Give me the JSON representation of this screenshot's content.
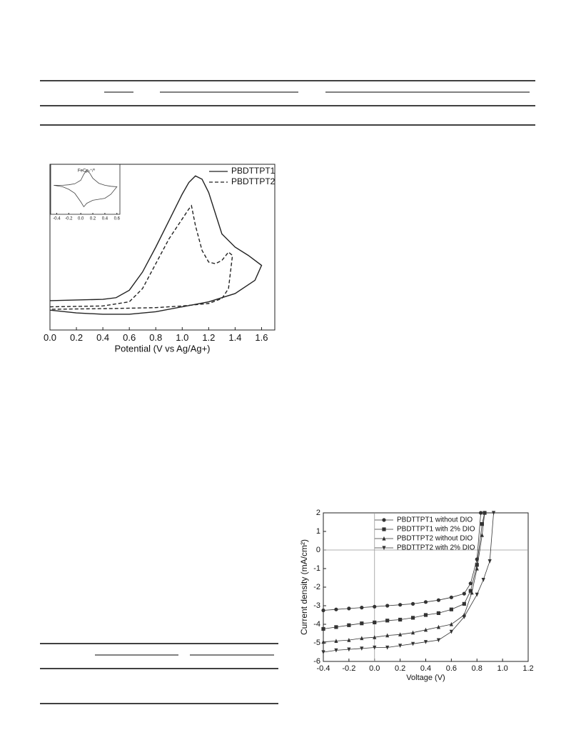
{
  "chart_data": [
    {
      "type": "line",
      "xlabel": "Potential (V vs Ag/Ag+)",
      "xlim": [
        0,
        1.7
      ],
      "ylim": [
        0,
        100
      ],
      "xticks": [
        {
          "value": 0,
          "label": "0.0"
        },
        0.2,
        0.4,
        0.6,
        0.8,
        {
          "value": 1,
          "label": "1.0"
        },
        1.2,
        1.4,
        1.6
      ],
      "legend": "top-right",
      "series": [
        {
          "name": "PBDTTPT1",
          "color": "#222222",
          "style": "solid",
          "x": [
            0,
            0.4,
            0.5,
            0.6,
            0.7,
            0.8,
            0.9,
            1.0,
            1.05,
            1.1,
            1.15,
            1.2,
            1.3,
            1.4,
            1.5,
            1.6,
            1.55,
            1.4,
            1.2,
            1.0,
            0.8,
            0.6,
            0.4,
            0.2,
            0
          ],
          "values": [
            17.7,
            18.5,
            19.5,
            24,
            35,
            50,
            66,
            82,
            89,
            93,
            91,
            83,
            58,
            50,
            45,
            39,
            30,
            22,
            17,
            14,
            11,
            9.5,
            9.5,
            10.3,
            12
          ]
        },
        {
          "name": "PBDTTPT2",
          "color": "#222222",
          "style": "dashed",
          "x": [
            0,
            0.4,
            0.6,
            0.7,
            0.8,
            0.9,
            1.0,
            1.05,
            1.07,
            1.1,
            1.15,
            1.2,
            1.25,
            1.3,
            1.35,
            1.38,
            1.35,
            1.3,
            1.2,
            1.0,
            0.8,
            0.5,
            0
          ],
          "values": [
            14,
            14.5,
            17,
            25,
            40,
            55,
            67,
            73,
            75,
            63,
            48,
            41,
            40,
            42,
            47,
            45,
            25,
            19,
            16,
            14.5,
            13.5,
            13,
            12.5
          ]
        }
      ]
    },
    {
      "type": "line",
      "title": "FeCp₂⁺/⁰",
      "xlim": [
        -0.5,
        0.65
      ],
      "ylim": [
        0,
        100
      ],
      "xticks": [
        -0.4,
        -0.2,
        {
          "value": 0,
          "label": "0.0"
        },
        0.2,
        0.4,
        0.6
      ],
      "series": [
        {
          "color": "#444444",
          "style": "solid",
          "x": [
            -0.45,
            -0.3,
            -0.2,
            -0.1,
            0,
            0.05,
            0.1,
            0.15,
            0.2,
            0.3,
            0.4,
            0.5,
            0.6,
            0.5,
            0.4,
            0.3,
            0.2,
            0.1,
            0.05,
            0,
            -0.1,
            -0.2,
            -0.3,
            -0.45
          ],
          "values": [
            58,
            58,
            59,
            61,
            68,
            80,
            88,
            82,
            72,
            62,
            58,
            56,
            55,
            40,
            32,
            30,
            28,
            22,
            15,
            25,
            42,
            50,
            55,
            58
          ]
        }
      ]
    },
    {
      "type": "line",
      "xlabel": "Voltage (V)",
      "ylabel": "Current density (mA/cm²)",
      "xlim": [
        -0.4,
        1.2
      ],
      "ylim": [
        -6,
        2
      ],
      "xticks": [
        -0.4,
        -0.2,
        {
          "value": 0,
          "label": "0.0"
        },
        0.2,
        0.4,
        0.6,
        0.8,
        {
          "value": 1,
          "label": "1.0"
        },
        1.2
      ],
      "yticks": [
        -6,
        -5,
        -4,
        -3,
        -2,
        -1,
        0,
        1,
        2
      ],
      "zero_lines": true,
      "legend": "top-right",
      "series": [
        {
          "name": "PBDTTPT1 without DIO",
          "color": "#333333",
          "marker": "circle",
          "x": [
            -0.4,
            -0.3,
            -0.2,
            -0.1,
            0,
            0.1,
            0.2,
            0.3,
            0.4,
            0.5,
            0.6,
            0.7,
            0.75,
            0.8,
            0.83
          ],
          "values": [
            -3.25,
            -3.2,
            -3.15,
            -3.1,
            -3.05,
            -3.0,
            -2.95,
            -2.9,
            -2.8,
            -2.7,
            -2.55,
            -2.35,
            -1.8,
            -0.5,
            2
          ]
        },
        {
          "name": "PBDTTPT1 with 2% DIO",
          "color": "#333333",
          "marker": "square",
          "x": [
            -0.4,
            -0.3,
            -0.2,
            -0.1,
            0,
            0.1,
            0.2,
            0.3,
            0.4,
            0.5,
            0.6,
            0.7,
            0.75,
            0.8,
            0.84,
            0.86
          ],
          "values": [
            -4.25,
            -4.15,
            -4.05,
            -3.95,
            -3.9,
            -3.8,
            -3.75,
            -3.65,
            -3.5,
            -3.4,
            -3.2,
            -2.9,
            -2.2,
            -0.8,
            1.4,
            2
          ]
        },
        {
          "name": "PBDTTPT2 without DIO",
          "color": "#333333",
          "marker": "triangle-up",
          "x": [
            -0.4,
            -0.3,
            -0.2,
            -0.1,
            0,
            0.1,
            0.2,
            0.3,
            0.4,
            0.5,
            0.6,
            0.7,
            0.76,
            0.8,
            0.84,
            0.86
          ],
          "values": [
            -4.95,
            -4.9,
            -4.85,
            -4.75,
            -4.7,
            -4.6,
            -4.55,
            -4.45,
            -4.3,
            -4.15,
            -4.0,
            -3.5,
            -2.3,
            -1.0,
            0.8,
            2
          ]
        },
        {
          "name": "PBDTTPT2 with 2% DIO",
          "color": "#333333",
          "marker": "triangle-down",
          "x": [
            -0.4,
            -0.3,
            -0.2,
            -0.1,
            0,
            0.1,
            0.2,
            0.3,
            0.4,
            0.5,
            0.6,
            0.7,
            0.8,
            0.85,
            0.9,
            0.93
          ],
          "values": [
            -5.5,
            -5.4,
            -5.35,
            -5.3,
            -5.25,
            -5.25,
            -5.15,
            -5.05,
            -4.95,
            -4.85,
            -4.4,
            -3.6,
            -2.4,
            -1.6,
            -0.6,
            2
          ]
        }
      ]
    }
  ]
}
